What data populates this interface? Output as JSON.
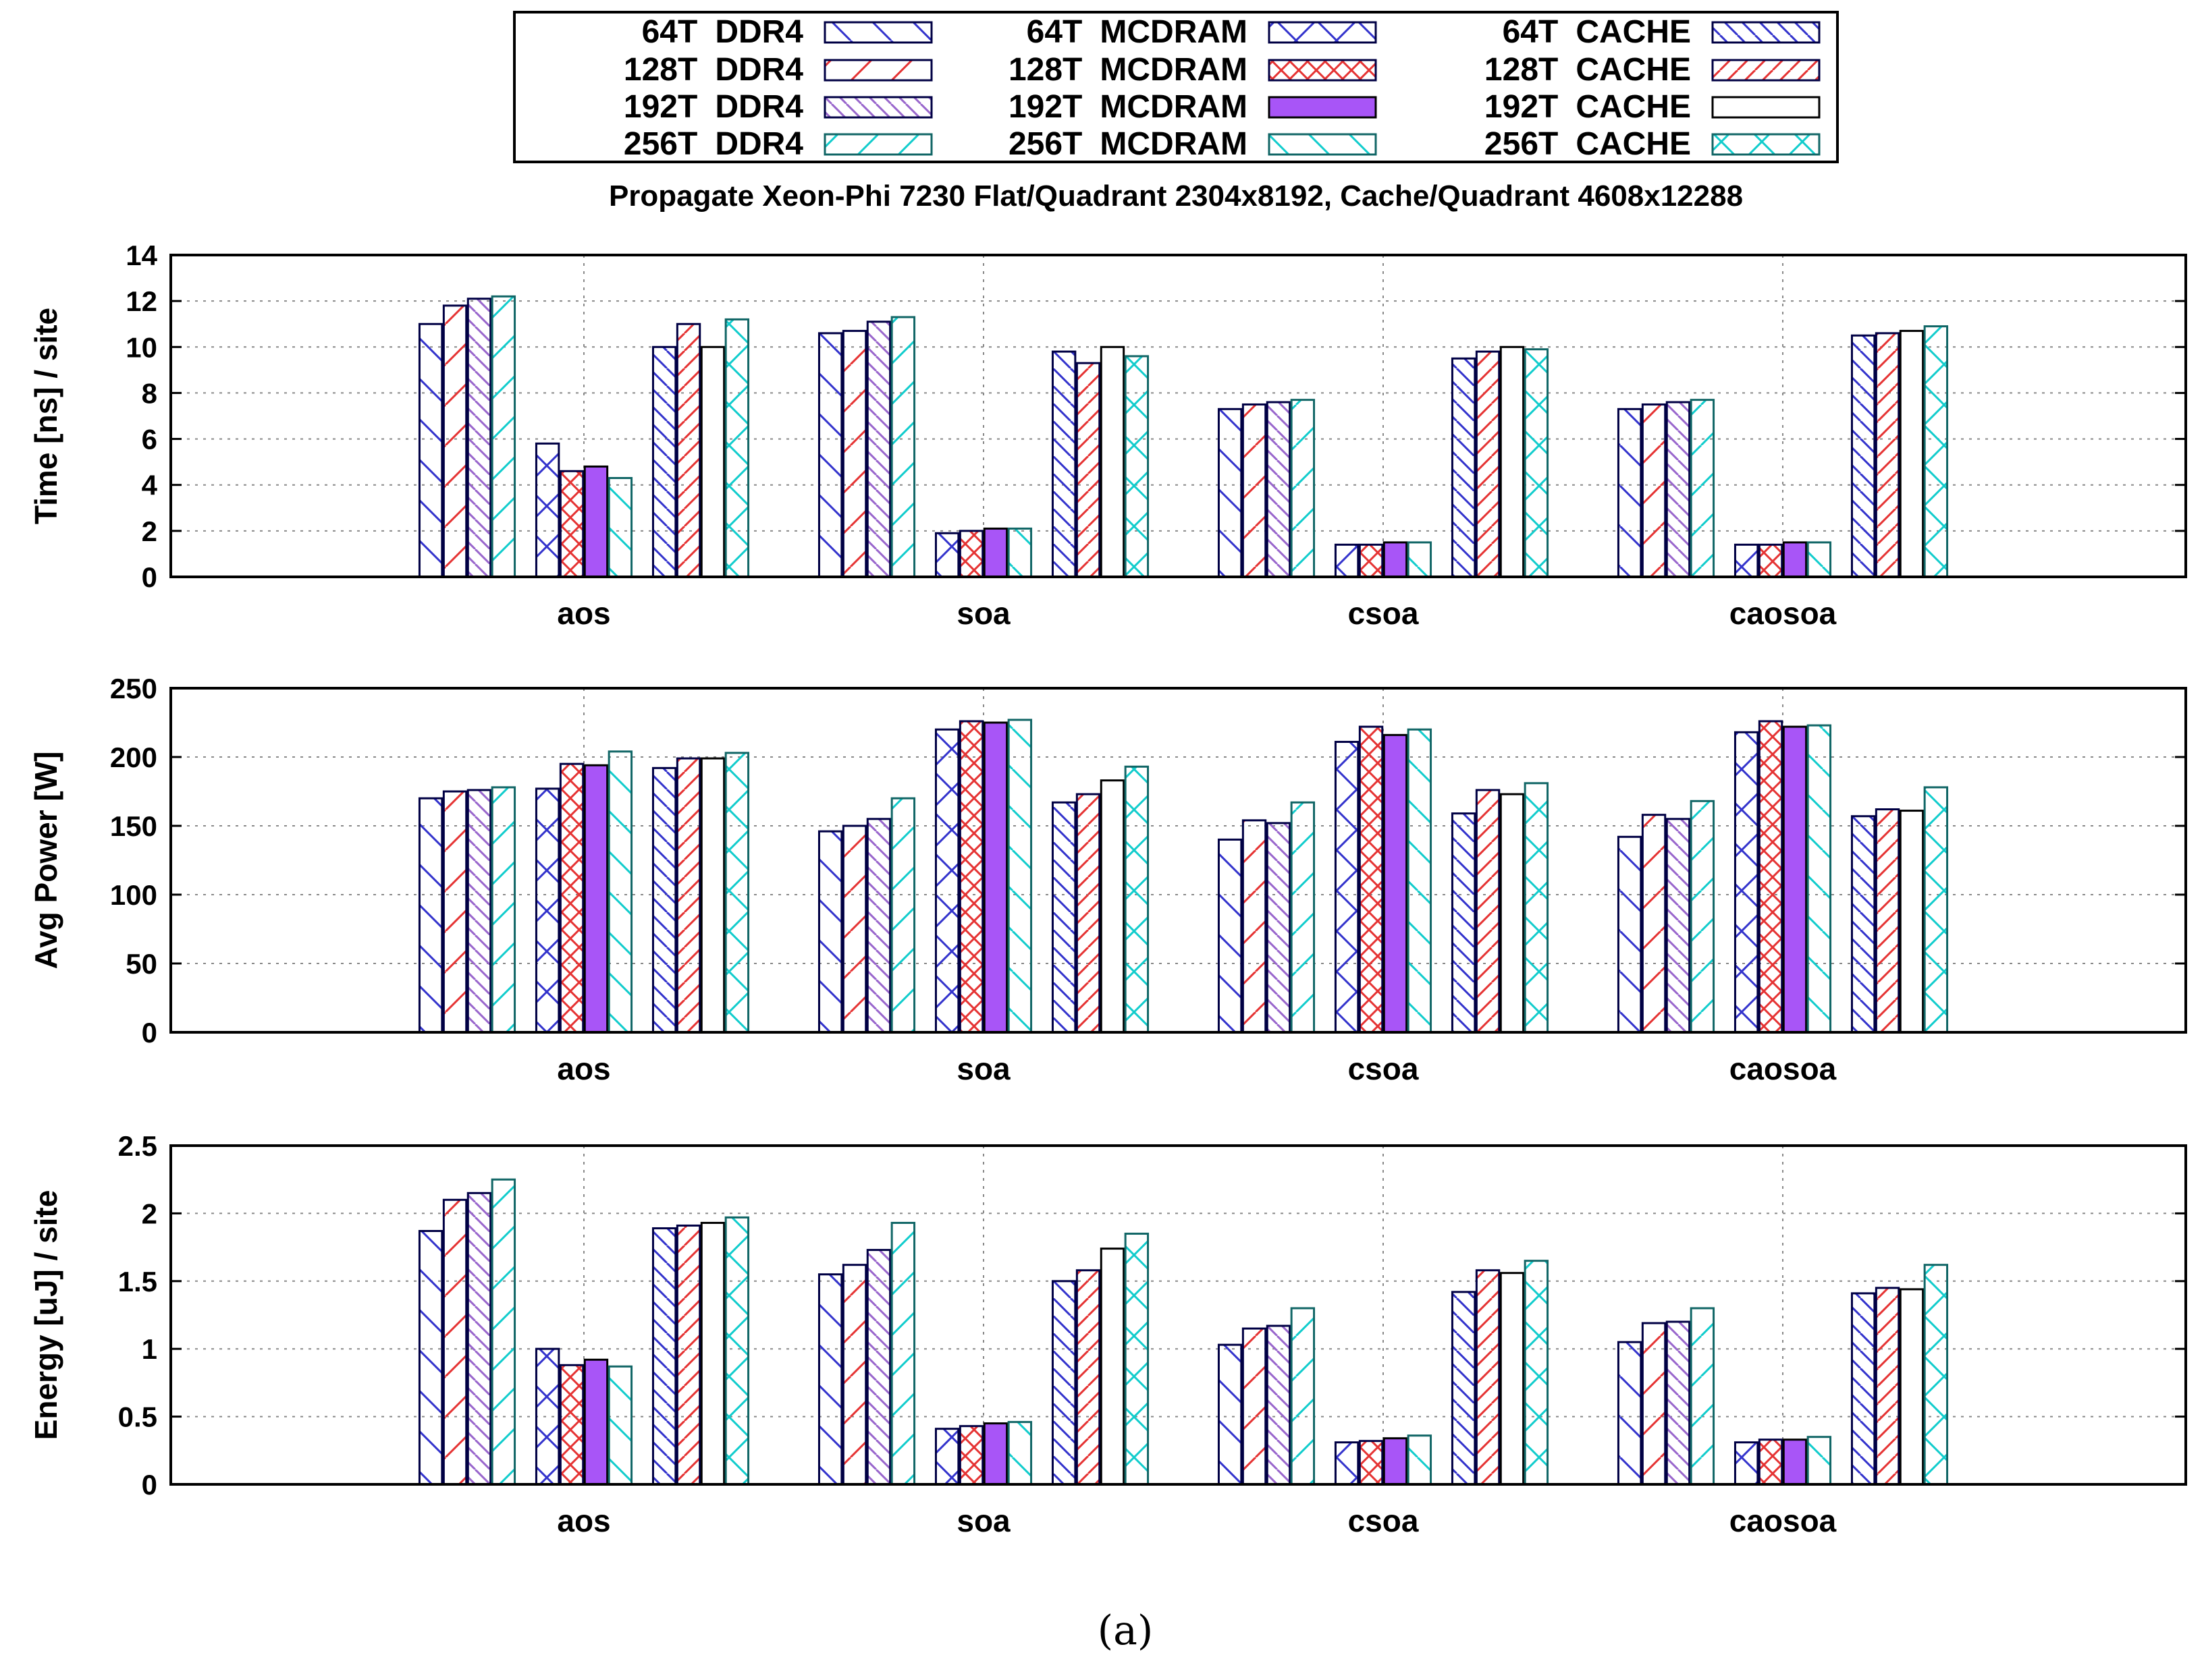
{
  "chart_data": {
    "type": "bar",
    "title": "Propagate Xeon-Phi 7230 Flat/Quadrant 2304x8192, Cache/Quadrant 4608x12288",
    "caption": "(a)",
    "categories": [
      "aos",
      "soa",
      "csoa",
      "caosoa"
    ],
    "legend": [
      {
        "threads": "64T",
        "mode": "DDR4",
        "color": "#3333cc",
        "pattern": "hatch-back"
      },
      {
        "threads": "128T",
        "mode": "DDR4",
        "color": "#e53333",
        "pattern": "hatch-fwd"
      },
      {
        "threads": "192T",
        "mode": "DDR4",
        "color": "#9966cc",
        "pattern": "hatch-back-light"
      },
      {
        "threads": "256T",
        "mode": "DDR4",
        "color": "#11cccc",
        "pattern": "hatch-fwd"
      },
      {
        "threads": "64T",
        "mode": "MCDRAM",
        "color": "#3333cc",
        "pattern": "cross"
      },
      {
        "threads": "128T",
        "mode": "MCDRAM",
        "color": "#e53333",
        "pattern": "cross-dense"
      },
      {
        "threads": "192T",
        "mode": "MCDRAM",
        "color": "#a855f7",
        "pattern": "solid"
      },
      {
        "threads": "256T",
        "mode": "MCDRAM",
        "color": "#11cccc",
        "pattern": "hatch-back"
      },
      {
        "threads": "64T",
        "mode": "CACHE",
        "color": "#3333cc",
        "pattern": "hatch-back-dense"
      },
      {
        "threads": "128T",
        "mode": "CACHE",
        "color": "#e53333",
        "pattern": "hatch-fwd-dense"
      },
      {
        "threads": "192T",
        "mode": "CACHE",
        "color": "#000000",
        "pattern": "empty"
      },
      {
        "threads": "256T",
        "mode": "CACHE",
        "color": "#11cccc",
        "pattern": "cross"
      }
    ],
    "panels": [
      {
        "ylabel": "Time [ns] / site",
        "ylim": [
          0,
          14
        ],
        "yticks": [
          "0",
          "2",
          "4",
          "6",
          "8",
          "10",
          "12",
          "14"
        ],
        "series": [
          {
            "mode": "DDR4",
            "values": [
              [
                11.0,
                11.8,
                12.1,
                12.2
              ],
              [
                10.6,
                10.7,
                11.1,
                11.3
              ],
              [
                7.3,
                7.5,
                7.6,
                7.7
              ],
              [
                7.3,
                7.5,
                7.6,
                7.7
              ]
            ]
          },
          {
            "mode": "MCDRAM",
            "values": [
              [
                5.8,
                4.6,
                4.8,
                4.3
              ],
              [
                1.9,
                2.0,
                2.1,
                2.1
              ],
              [
                1.4,
                1.4,
                1.5,
                1.5
              ],
              [
                1.4,
                1.4,
                1.5,
                1.5
              ]
            ]
          },
          {
            "mode": "CACHE",
            "values": [
              [
                10.0,
                11.0,
                10.0,
                11.2
              ],
              [
                9.8,
                9.3,
                10.0,
                9.6
              ],
              [
                9.5,
                9.8,
                10.0,
                9.9
              ],
              [
                10.5,
                10.6,
                10.7,
                10.9
              ]
            ]
          }
        ]
      },
      {
        "ylabel": "Avg Power [W]",
        "ylim": [
          0,
          250
        ],
        "yticks": [
          "0",
          "50",
          "100",
          "150",
          "200",
          "250"
        ],
        "series": [
          {
            "mode": "DDR4",
            "values": [
              [
                170,
                175,
                176,
                178
              ],
              [
                146,
                150,
                155,
                170
              ],
              [
                140,
                154,
                152,
                167
              ],
              [
                142,
                158,
                155,
                168
              ]
            ]
          },
          {
            "mode": "MCDRAM",
            "values": [
              [
                177,
                195,
                194,
                204
              ],
              [
                220,
                226,
                225,
                227
              ],
              [
                211,
                222,
                216,
                220
              ],
              [
                218,
                226,
                222,
                223
              ]
            ]
          },
          {
            "mode": "CACHE",
            "values": [
              [
                192,
                199,
                199,
                203
              ],
              [
                167,
                173,
                183,
                193
              ],
              [
                159,
                176,
                173,
                181
              ],
              [
                157,
                162,
                161,
                178
              ]
            ]
          }
        ]
      },
      {
        "ylabel": "Energy [uJ] / site",
        "ylim": [
          0,
          2.5
        ],
        "yticks": [
          "0",
          "0.5",
          "1",
          "1.5",
          "2",
          "2.5"
        ],
        "series": [
          {
            "mode": "DDR4",
            "values": [
              [
                1.87,
                2.1,
                2.15,
                2.25
              ],
              [
                1.55,
                1.62,
                1.73,
                1.93
              ],
              [
                1.03,
                1.15,
                1.17,
                1.3
              ],
              [
                1.05,
                1.19,
                1.2,
                1.3
              ]
            ]
          },
          {
            "mode": "MCDRAM",
            "values": [
              [
                1.0,
                0.88,
                0.92,
                0.87
              ],
              [
                0.41,
                0.43,
                0.45,
                0.46
              ],
              [
                0.31,
                0.32,
                0.34,
                0.36
              ],
              [
                0.31,
                0.33,
                0.33,
                0.35
              ]
            ]
          },
          {
            "mode": "CACHE",
            "values": [
              [
                1.89,
                1.91,
                1.93,
                1.97
              ],
              [
                1.5,
                1.58,
                1.74,
                1.85
              ],
              [
                1.42,
                1.58,
                1.56,
                1.65
              ],
              [
                1.41,
                1.45,
                1.44,
                1.62
              ]
            ]
          }
        ]
      }
    ]
  }
}
